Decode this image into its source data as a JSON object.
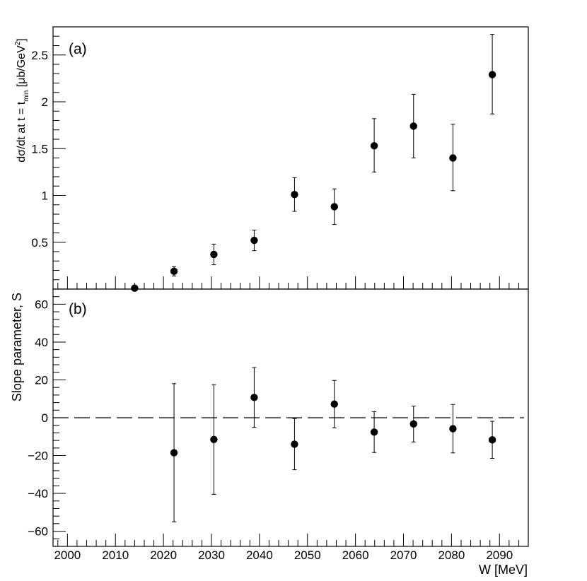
{
  "chart_data": [
    {
      "panel_label": "(a)",
      "type": "scatter",
      "ylabel": {
        "main": "dσ/dt at t = t",
        "sub": "min",
        "unit_open": " [μb/GeV",
        "sup": "2",
        "unit_close": "]"
      },
      "xlim": [
        1997,
        2096
      ],
      "ylim": [
        0,
        2.8
      ],
      "ytick_labels": [
        "0.5",
        "1",
        "1.5",
        "2",
        "2.5"
      ],
      "ytick_values": [
        0.5,
        1,
        1.5,
        2,
        2.5
      ],
      "points": [
        {
          "x": 2014.0,
          "y": 0.01,
          "yerr_low": 0.0,
          "yerr_high": 0.0
        },
        {
          "x": 2022.2,
          "y": 0.19,
          "yerr_low": 0.05,
          "yerr_high": 0.05
        },
        {
          "x": 2030.5,
          "y": 0.37,
          "yerr_low": 0.11,
          "yerr_high": 0.11
        },
        {
          "x": 2038.9,
          "y": 0.52,
          "yerr_low": 0.11,
          "yerr_high": 0.11
        },
        {
          "x": 2047.3,
          "y": 1.01,
          "yerr_low": 0.18,
          "yerr_high": 0.18
        },
        {
          "x": 2055.6,
          "y": 0.88,
          "yerr_low": 0.19,
          "yerr_high": 0.19
        },
        {
          "x": 2063.9,
          "y": 1.53,
          "yerr_low": 0.28,
          "yerr_high": 0.29
        },
        {
          "x": 2072.1,
          "y": 1.74,
          "yerr_low": 0.34,
          "yerr_high": 0.34
        },
        {
          "x": 2080.3,
          "y": 1.4,
          "yerr_low": 0.35,
          "yerr_high": 0.36
        },
        {
          "x": 2088.5,
          "y": 2.29,
          "yerr_low": 0.42,
          "yerr_high": 0.43
        }
      ]
    },
    {
      "panel_label": "(b)",
      "type": "scatter",
      "ylabel": "Slope parameter, S",
      "xlabel": "W [MeV]",
      "xlim": [
        1997,
        2096
      ],
      "ylim": [
        -68,
        68
      ],
      "xtick_labels": [
        "2000",
        "2010",
        "2020",
        "2030",
        "2040",
        "2050",
        "2060",
        "2070",
        "2080",
        "2090"
      ],
      "xtick_values": [
        2000,
        2010,
        2020,
        2030,
        2040,
        2050,
        2060,
        2070,
        2080,
        2090
      ],
      "ytick_labels": [
        "−60",
        "−40",
        "−20",
        "0",
        "20",
        "40",
        "60"
      ],
      "ytick_values": [
        -60,
        -40,
        -20,
        0,
        20,
        40,
        60
      ],
      "reference_line": {
        "y": 0,
        "style": "dashed"
      },
      "points": [
        {
          "x": 2022.2,
          "y": -18.5,
          "yerr_low": 36.5,
          "yerr_high": 36.5
        },
        {
          "x": 2030.5,
          "y": -11.5,
          "yerr_low": 29.0,
          "yerr_high": 29.0
        },
        {
          "x": 2038.9,
          "y": 10.7,
          "yerr_low": 15.8,
          "yerr_high": 15.8
        },
        {
          "x": 2047.3,
          "y": -14.0,
          "yerr_low": 13.5,
          "yerr_high": 13.5
        },
        {
          "x": 2055.6,
          "y": 7.2,
          "yerr_low": 12.5,
          "yerr_high": 12.5
        },
        {
          "x": 2063.9,
          "y": -7.6,
          "yerr_low": 10.8,
          "yerr_high": 10.8
        },
        {
          "x": 2072.1,
          "y": -3.3,
          "yerr_low": 9.5,
          "yerr_high": 9.5
        },
        {
          "x": 2080.3,
          "y": -5.8,
          "yerr_low": 12.8,
          "yerr_high": 12.8
        },
        {
          "x": 2088.5,
          "y": -11.7,
          "yerr_low": 9.8,
          "yerr_high": 9.8
        }
      ]
    }
  ]
}
